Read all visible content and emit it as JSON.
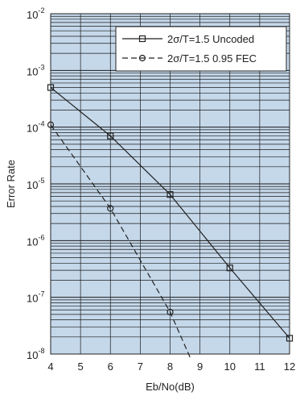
{
  "chart_data": {
    "type": "line",
    "xlabel": "Eb/No(dB)",
    "ylabel": "Error Rate",
    "xlim": [
      4,
      12
    ],
    "ylim": [
      1e-08,
      0.01
    ],
    "yscale": "log",
    "grid": true,
    "legend_position": "top-right",
    "x_ticks": [
      "4",
      "5",
      "6",
      "7",
      "8",
      "9",
      "10",
      "11",
      "12"
    ],
    "y_ticks": [
      {
        "value": 0.01,
        "base": "10",
        "exp": "-2"
      },
      {
        "value": 0.001,
        "base": "10",
        "exp": "-3"
      },
      {
        "value": 0.0001,
        "base": "10",
        "exp": "-4"
      },
      {
        "value": 1e-05,
        "base": "10",
        "exp": "-5"
      },
      {
        "value": 1e-06,
        "base": "10",
        "exp": "-6"
      },
      {
        "value": 1e-07,
        "base": "10",
        "exp": "-7"
      },
      {
        "value": 1e-08,
        "base": "10",
        "exp": "-8"
      }
    ],
    "series": [
      {
        "name": "2σ/T=1.5 Uncoded",
        "marker": "square",
        "line": "solid",
        "color": "#222222",
        "x": [
          4,
          6,
          8,
          10,
          12
        ],
        "y": [
          0.0005,
          7e-05,
          6.5e-06,
          3.3e-07,
          1.9e-08
        ]
      },
      {
        "name": "2σ/T=1.5 0.95 FEC",
        "marker": "circle",
        "line": "dashed",
        "color": "#222222",
        "x": [
          4,
          6,
          8,
          8.7
        ],
        "y": [
          0.00011,
          3.7e-06,
          5.5e-08,
          8e-09
        ]
      }
    ],
    "colors": {
      "plot_background": "#c5d8ea",
      "grid": "#1a1a1a"
    }
  }
}
